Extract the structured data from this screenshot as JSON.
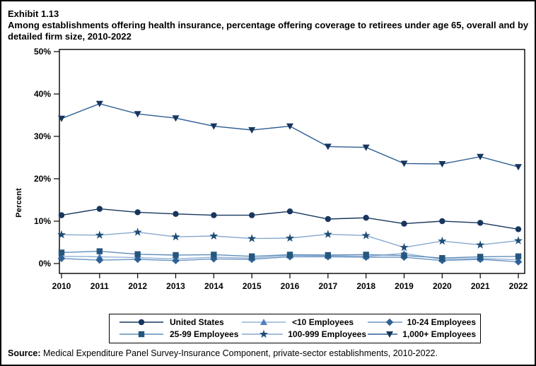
{
  "header": {
    "exhibit": "Exhibit 1.13",
    "title": "Among establishments offering health insurance, percentage offering coverage to retirees under age 65, overall and by detailed firm size, 2010-2022"
  },
  "footer": {
    "source_label": "Source:",
    "source_text": " Medical Expenditure Panel Survey-Insurance Component, private-sector establishments, 2010-2022."
  },
  "colors": {
    "frame": "#000000",
    "text": "#000000",
    "dark_navy": "#17365D"
  },
  "chart_data": {
    "type": "line",
    "title": "Among establishments offering health insurance, percentage offering coverage to retirees under age 65, overall and by detailed firm size, 2010-2022",
    "xlabel": "",
    "ylabel": "Percent",
    "ylim": [
      0,
      50
    ],
    "ytick_labels": [
      "0%",
      "10%",
      "20%",
      "30%",
      "40%",
      "50%"
    ],
    "grid": "off",
    "legend_position": "bottom",
    "x": [
      2010,
      2011,
      2012,
      2013,
      2014,
      2015,
      2016,
      2017,
      2018,
      2019,
      2020,
      2021,
      2022
    ],
    "series": [
      {
        "name": "United States",
        "marker": "circle",
        "color": "#17365D",
        "line_color": "#17365D",
        "values": [
          11.4,
          12.9,
          12.1,
          11.7,
          11.4,
          11.4,
          12.3,
          10.5,
          10.8,
          9.4,
          10.0,
          9.6,
          8.1
        ]
      },
      {
        "name": "<10 Employees",
        "marker": "triangle-up",
        "color": "#4F81BD",
        "line_color": "#94B3D7",
        "values": [
          1.7,
          1.6,
          1.4,
          1.1,
          1.5,
          1.3,
          1.9,
          1.8,
          1.7,
          2.4,
          1.0,
          1.2,
          0.9
        ]
      },
      {
        "name": "10-24 Employees",
        "marker": "diamond",
        "color": "#2E6095",
        "line_color": "#6C96C4",
        "values": [
          1.2,
          0.8,
          1.0,
          0.7,
          1.1,
          1.0,
          1.6,
          1.6,
          1.5,
          1.5,
          0.7,
          1.0,
          0.4
        ]
      },
      {
        "name": "25-99 Employees",
        "marker": "square",
        "color": "#25567E",
        "line_color": "#5E8DBB",
        "values": [
          2.6,
          2.9,
          2.2,
          2.0,
          2.1,
          1.7,
          2.1,
          2.0,
          2.1,
          1.9,
          1.3,
          1.6,
          1.7
        ]
      },
      {
        "name": "100-999 Employees",
        "marker": "star",
        "color": "#1E4C74",
        "line_color": "#86A9CE",
        "values": [
          6.8,
          6.7,
          7.4,
          6.3,
          6.5,
          5.9,
          6.0,
          6.9,
          6.6,
          3.8,
          5.3,
          4.4,
          5.4
        ]
      },
      {
        "name": "1,000+ Employees",
        "marker": "triangle-down",
        "color": "#17365D",
        "line_color": "#2E5F94",
        "values": [
          34.2,
          37.7,
          35.3,
          34.3,
          32.4,
          31.5,
          32.4,
          27.6,
          27.4,
          23.6,
          23.5,
          25.2,
          22.8
        ]
      }
    ]
  }
}
